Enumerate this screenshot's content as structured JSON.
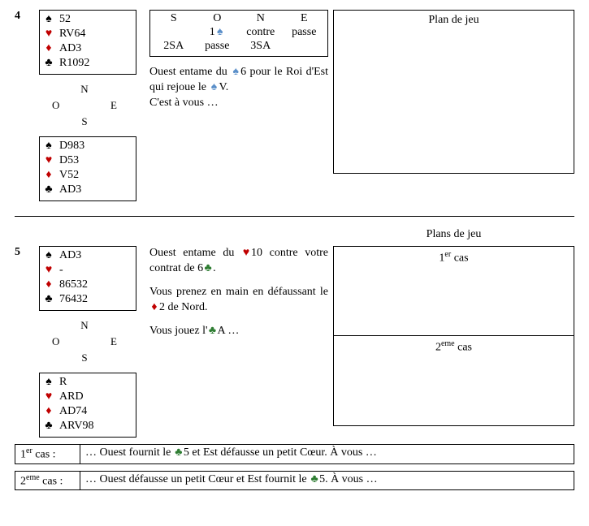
{
  "suits": {
    "spade": "♠",
    "heart": "♥",
    "diamond": "♦",
    "club": "♣"
  },
  "colors": {
    "black": "#000000",
    "red": "#c00000",
    "border": "#000000",
    "background": "#ffffff"
  },
  "compass": {
    "N": "N",
    "S": "S",
    "E": "E",
    "W": "O"
  },
  "problem4": {
    "number": "4",
    "north": {
      "spades": "52",
      "hearts": "RV64",
      "diamonds": "AD3",
      "clubs": "R1092"
    },
    "south": {
      "spades": "D983",
      "hearts": "D53",
      "diamonds": "V52",
      "clubs": "AD3"
    },
    "bidding": {
      "headers": [
        "S",
        "O",
        "N",
        "E"
      ],
      "rows": [
        [
          "",
          "1♠",
          "contre",
          "passe"
        ],
        [
          "2SA",
          "passe",
          "3SA",
          ""
        ]
      ]
    },
    "narrative": {
      "pre1": "Ouest entame du ",
      "sym1": "♠",
      "mid1": "6 pour le Roi d'Est qui rejoue le ",
      "sym2": "♠",
      "mid2": "V.",
      "line2": "C'est à vous …"
    },
    "plan_title": "Plan de jeu"
  },
  "problem5": {
    "number": "5",
    "plans_header": "Plans de jeu",
    "north": {
      "spades": "AD3",
      "hearts": "-",
      "diamonds": "86532",
      "clubs": "76432"
    },
    "south": {
      "spades": "R",
      "hearts": "ARD",
      "diamonds": "AD74",
      "clubs": "ARV98"
    },
    "narrative": {
      "p1a": "Ouest entame du ",
      "p1sym": "♥",
      "p1b": "10 contre votre contrat de 6",
      "p1sym2": "♣",
      "p1c": ".",
      "p2a": "Vous prenez en main en défaussant le ",
      "p2sym": "♦",
      "p2b": "2 de Nord.",
      "p3a": "Vous jouez l'",
      "p3sym": "♣",
      "p3b": "A …"
    },
    "case1_label_num": "1",
    "case1_label_sup": "er",
    "case1_label_tail": " cas",
    "case2_label_num": "2",
    "case2_label_sup": "eme",
    "case2_label_tail": " cas",
    "case1": {
      "label_num": "1",
      "label_sup": "er",
      "label_tail": " cas :",
      "text_a": "… Ouest fournit le ",
      "text_sym": "♣",
      "text_b": "5 et Est défausse un petit Cœur. À vous …"
    },
    "case2": {
      "label_num": "2",
      "label_sup": "eme",
      "label_tail": " cas :",
      "text_a": "… Ouest défausse un petit Cœur et Est fournit le ",
      "text_sym": "♣",
      "text_b": "5. À vous …"
    }
  }
}
